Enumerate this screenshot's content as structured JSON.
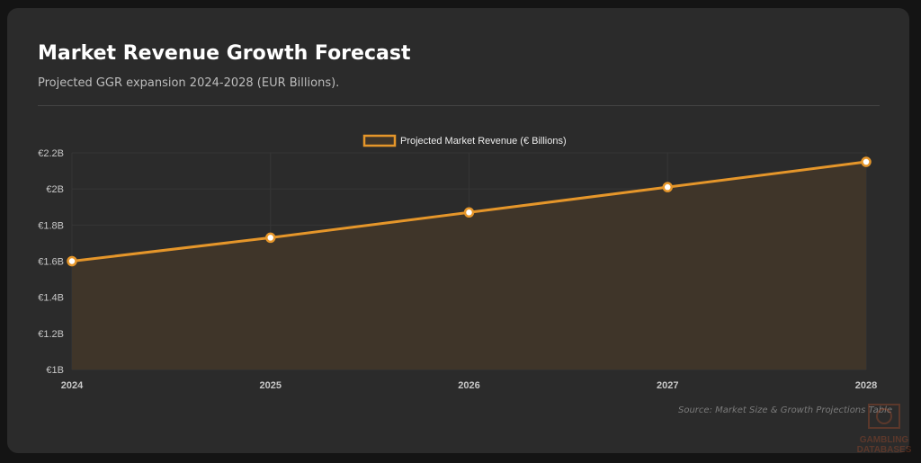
{
  "header": {
    "title": "Market Revenue Growth Forecast",
    "subtitle": "Projected GGR expansion 2024-2028 (EUR Billions)."
  },
  "footer": {
    "source": "Source: Market Size & Growth Projections Table",
    "watermark": "GAMBLING DATABASES"
  },
  "colors": {
    "line": "#e5962a",
    "fill": "#3f3529",
    "grid": "#363636",
    "tick": "#c8c8c8"
  },
  "chart_data": {
    "type": "area",
    "title": "",
    "xlabel": "",
    "ylabel": "",
    "categories": [
      "2024",
      "2025",
      "2026",
      "2027",
      "2028"
    ],
    "series": [
      {
        "name": "Projected Market Revenue (€ Billions)",
        "values": [
          1.6,
          1.73,
          1.87,
          2.01,
          2.15
        ]
      }
    ],
    "ylim": [
      1,
      2.2
    ],
    "yticks": [
      1,
      1.2,
      1.4,
      1.6,
      1.8,
      2,
      2.2
    ],
    "ytick_labels": [
      "€1B",
      "€1.2B",
      "€1.4B",
      "€1.6B",
      "€1.8B",
      "€2B",
      "€2.2B"
    ],
    "grid": true,
    "legend": "top-center"
  }
}
